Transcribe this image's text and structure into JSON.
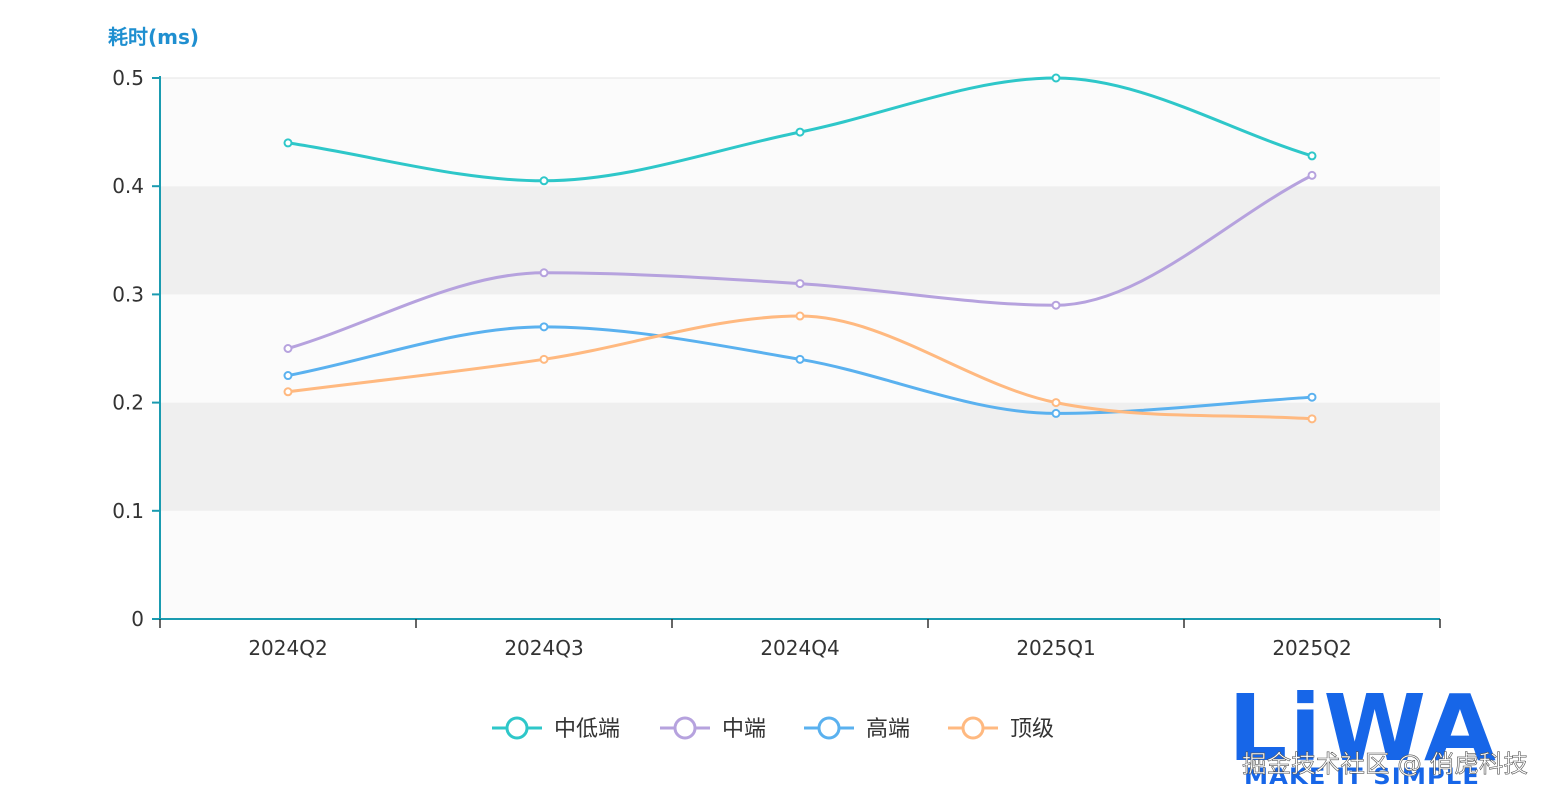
{
  "chart_data": {
    "type": "line",
    "smooth": true,
    "title": "",
    "xlabel": "",
    "ylabel": "耗时(ms)",
    "ylim": [
      0,
      0.5
    ],
    "yticks": [
      0,
      0.1,
      0.2,
      0.3,
      0.4,
      0.5
    ],
    "ytick_labels": [
      "0",
      "0.1",
      "0.2",
      "0.3",
      "0.4",
      "0.5"
    ],
    "categories": [
      "2024Q2",
      "2024Q3",
      "2024Q4",
      "2025Q1",
      "2025Q2"
    ],
    "grid": "alternating horizontal bands",
    "legend_position": "bottom-center",
    "series": [
      {
        "name": "中低端",
        "color": "#2ec7c9",
        "values": [
          0.44,
          0.405,
          0.45,
          0.5,
          0.428
        ]
      },
      {
        "name": "中端",
        "color": "#b6a2de",
        "values": [
          0.25,
          0.32,
          0.31,
          0.29,
          0.41
        ]
      },
      {
        "name": "高端",
        "color": "#5ab1ef",
        "values": [
          0.225,
          0.27,
          0.24,
          0.19,
          0.205
        ]
      },
      {
        "name": "顶级",
        "color": "#ffb980",
        "values": [
          0.21,
          0.24,
          0.28,
          0.2,
          0.185
        ]
      }
    ]
  },
  "watermark": {
    "logo_text": "LiWA",
    "tagline": "MAKE IT SIMPLE",
    "credit": "掘金技术社区 @ 俏虎科技"
  }
}
